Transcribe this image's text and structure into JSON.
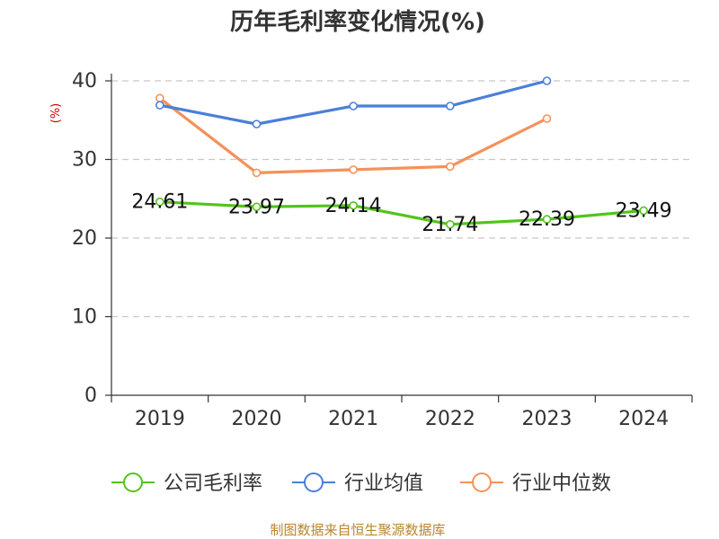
{
  "chart_data": {
    "type": "line",
    "title": "历年毛利率变化情况(%)",
    "ylabel": "(%)",
    "ylim": [
      0,
      40
    ],
    "yticks": [
      0,
      10,
      20,
      30,
      40
    ],
    "grid": true,
    "legend_position": "bottom",
    "categories": [
      "2019",
      "2020",
      "2021",
      "2022",
      "2023",
      "2024"
    ],
    "series": [
      {
        "name": "公司毛利率",
        "color": "#52c41a",
        "values": [
          24.61,
          23.97,
          24.14,
          21.74,
          22.39,
          23.49
        ],
        "labels": [
          "24.61",
          "23.97",
          "24.14",
          "21.74",
          "22.39",
          "23.49"
        ]
      },
      {
        "name": "行业均值",
        "color": "#4a7fd9",
        "values": [
          36.9,
          34.5,
          36.8,
          36.8,
          40.0,
          null
        ]
      },
      {
        "name": "行业中位数",
        "color": "#f5915a",
        "values": [
          37.8,
          28.3,
          28.7,
          29.1,
          35.2,
          null
        ]
      }
    ]
  },
  "source": "制图数据来自恒生聚源数据库"
}
